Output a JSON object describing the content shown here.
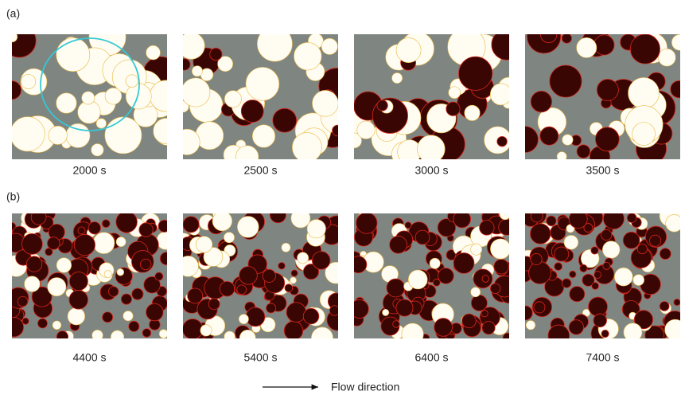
{
  "panels": [
    {
      "label": "(a)",
      "times": [
        "2000 s",
        "2500 s",
        "3000 s",
        "3500 s"
      ]
    },
    {
      "label": "(b)",
      "times": [
        "4400 s",
        "5400 s",
        "6400 s",
        "7400 s"
      ]
    }
  ],
  "flow_label": "Flow direction"
}
